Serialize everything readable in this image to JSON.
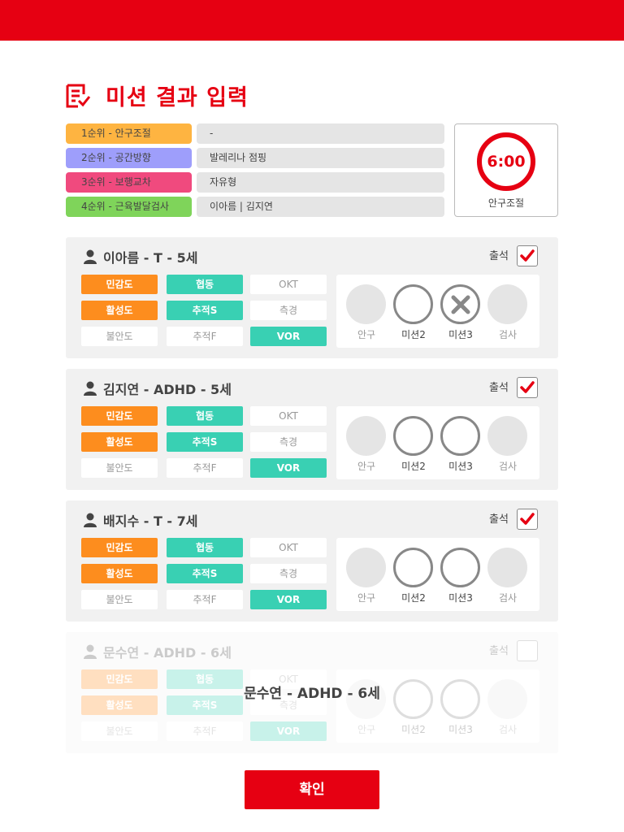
{
  "header": {
    "title": "미션 결과 입력"
  },
  "ranks": [
    {
      "label": "1순위 - 안구조절",
      "value": "-",
      "color": "#feb441"
    },
    {
      "label": "2순위 - 공간방향",
      "value": "발레리나 점핑",
      "color": "#9e9efb"
    },
    {
      "label": "3순위 - 보행교차",
      "value": "자유형",
      "color": "#f04a7e"
    },
    {
      "label": "4순위 - 근육발달검사",
      "value": "이아름 | 김지연",
      "color": "#7fd45a"
    }
  ],
  "timer": {
    "time": "6:00",
    "label": "안구조절"
  },
  "students": [
    {
      "name": "이아름 - T - 5세",
      "attend_label": "출석",
      "checked": true,
      "tags": [
        "민감도",
        "협동",
        "OKT",
        "활성도",
        "추적S",
        "측경",
        "불안도",
        "추적F",
        "VOR"
      ],
      "missions": [
        "안구",
        "미션2",
        "미션3",
        "검사"
      ],
      "mission3_failed": true
    },
    {
      "name": "김지연 - ADHD - 5세",
      "attend_label": "출석",
      "checked": true,
      "tags": [
        "민감도",
        "협동",
        "OKT",
        "활성도",
        "추적S",
        "측경",
        "불안도",
        "추적F",
        "VOR"
      ],
      "missions": [
        "안구",
        "미션2",
        "미션3",
        "검사"
      ],
      "mission3_failed": false
    },
    {
      "name": "배지수 - T - 7세",
      "attend_label": "출석",
      "checked": true,
      "tags": [
        "민감도",
        "협동",
        "OKT",
        "활성도",
        "추적S",
        "측경",
        "불안도",
        "추적F",
        "VOR"
      ],
      "missions": [
        "안구",
        "미션2",
        "미션3",
        "검사"
      ],
      "mission3_failed": false
    },
    {
      "name": "문수연 - ADHD - 6세",
      "attend_label": "출석",
      "checked": false,
      "tags": [
        "민감도",
        "협동",
        "OKT",
        "활성도",
        "추적S",
        "측경",
        "불안도",
        "추적F",
        "VOR"
      ],
      "missions": [
        "안구",
        "미션2",
        "미션3",
        "검사"
      ],
      "mission3_failed": false,
      "disabled": true
    }
  ],
  "confirm_label": "확인",
  "colors": {
    "brand": "#e60012",
    "orange": "#fd8d1e",
    "teal": "#39d0b3"
  }
}
